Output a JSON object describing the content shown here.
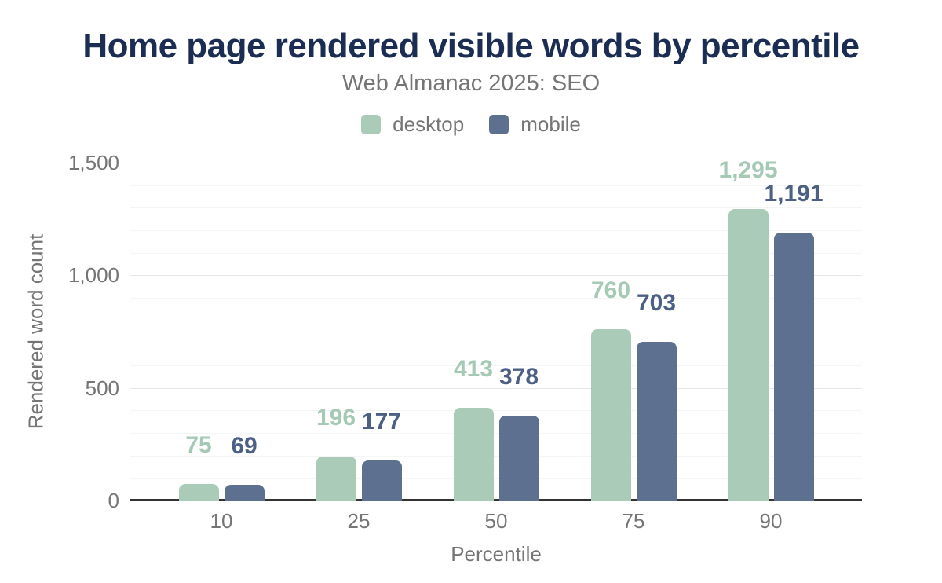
{
  "title": "Home page rendered visible words by percentile",
  "subtitle": "Web Almanac 2025: SEO",
  "legend": [
    {
      "label": "desktop",
      "color": "#a9cbb8"
    },
    {
      "label": "mobile",
      "color": "#5d7090"
    }
  ],
  "chart_data": {
    "type": "bar",
    "title": "Home page rendered visible words by percentile",
    "subtitle": "Web Almanac 2025: SEO",
    "categories": [
      "10",
      "25",
      "50",
      "75",
      "90"
    ],
    "series": [
      {
        "name": "desktop",
        "color": "#a9cbb8",
        "label_color": "#a5c9b4",
        "values": [
          75,
          196,
          413,
          760,
          1295
        ],
        "value_labels": [
          "75",
          "196",
          "413",
          "760",
          "1,295"
        ]
      },
      {
        "name": "mobile",
        "color": "#5d7090",
        "label_color": "#4c6085",
        "values": [
          69,
          177,
          378,
          703,
          1191
        ],
        "value_labels": [
          "69",
          "177",
          "378",
          "703",
          "1,191"
        ]
      }
    ],
    "xlabel": "Percentile",
    "ylabel": "Rendered word count",
    "ylim": [
      0,
      1500
    ],
    "yticks": [
      0,
      500,
      1000,
      1500
    ],
    "ytick_labels": [
      "0",
      "500",
      "1,000",
      "1,500"
    ],
    "minor_grid_step": 100,
    "grid": true,
    "legend_position": "top"
  },
  "colors": {
    "title_text": "#1b2d52",
    "muted_text": "#757575",
    "axis_line": "#333333",
    "major_gridline": "#e5e7e7",
    "minor_gridline": "#f4f5f5",
    "background": "#ffffff"
  }
}
